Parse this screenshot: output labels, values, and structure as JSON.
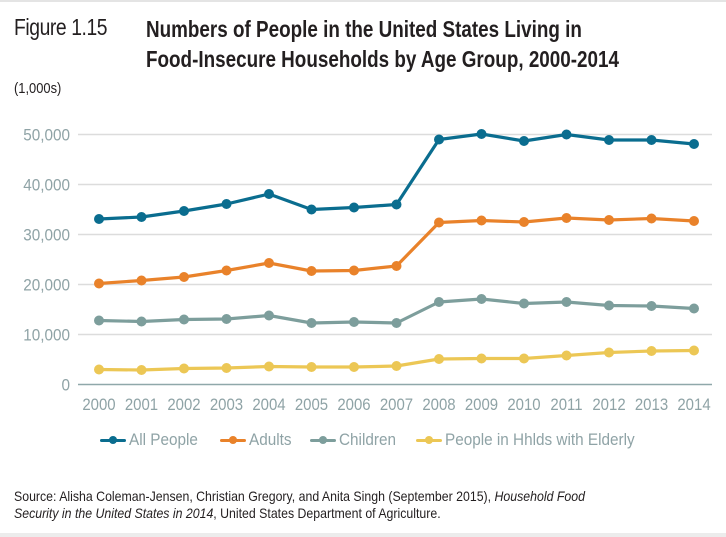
{
  "figure": {
    "label": "Figure 1.15",
    "title_line1": "Numbers of People in the United States Living in",
    "title_line2": "Food-Insecure Households by Age Group, 2000-2014",
    "units": "(1,000s)"
  },
  "source": {
    "prefix": "Source: Alisha Coleman-Jensen, Christian Gregory, and Anita Singh (September 2015), ",
    "italic1": "Household Food",
    "italic2": "Security in the United States in 2014",
    "suffix": ", United States Department of Agriculture."
  },
  "colors": {
    "all_people": "#0a6d8f",
    "adults": "#e9822a",
    "children": "#7d9e9c",
    "elderly": "#ecc755",
    "axis_text": "#8fa3a6",
    "gridline": "#dcdcdc",
    "baseline": "#8fa8aa"
  },
  "chart_data": {
    "type": "line",
    "title": "Numbers of People in the United States Living in Food-Insecure Households by Age Group, 2000-2014",
    "xlabel": "",
    "ylabel": "(1,000s)",
    "x": [
      "2000",
      "2001",
      "2002",
      "2003",
      "2004",
      "2005",
      "2006",
      "2007",
      "2008",
      "2009",
      "2010",
      "2011",
      "2012",
      "2013",
      "2014"
    ],
    "ylim": [
      0,
      50000
    ],
    "yticks": [
      0,
      10000,
      20000,
      30000,
      40000,
      50000
    ],
    "ytick_labels": [
      "0",
      "10,000",
      "20,000",
      "30,000",
      "40,000",
      "50,000"
    ],
    "grid": true,
    "legend_position": "bottom",
    "series": [
      {
        "name": "All People",
        "key": "all_people",
        "values": [
          33100,
          33500,
          34700,
          36100,
          38100,
          35000,
          35400,
          36000,
          49000,
          50100,
          48700,
          50000,
          48900,
          48900,
          48100
        ]
      },
      {
        "name": "Adults",
        "key": "adults",
        "values": [
          20200,
          20800,
          21500,
          22800,
          24300,
          22700,
          22800,
          23700,
          32400,
          32800,
          32500,
          33300,
          32900,
          33200,
          32700
        ]
      },
      {
        "name": "Children",
        "key": "children",
        "values": [
          12800,
          12600,
          13000,
          13100,
          13800,
          12300,
          12500,
          12300,
          16500,
          17100,
          16200,
          16500,
          15800,
          15700,
          15200
        ]
      },
      {
        "name": "People in Hhlds with Elderly",
        "key": "elderly",
        "values": [
          3000,
          2900,
          3200,
          3300,
          3600,
          3500,
          3500,
          3700,
          5100,
          5200,
          5200,
          5800,
          6400,
          6700,
          6800
        ]
      }
    ]
  }
}
